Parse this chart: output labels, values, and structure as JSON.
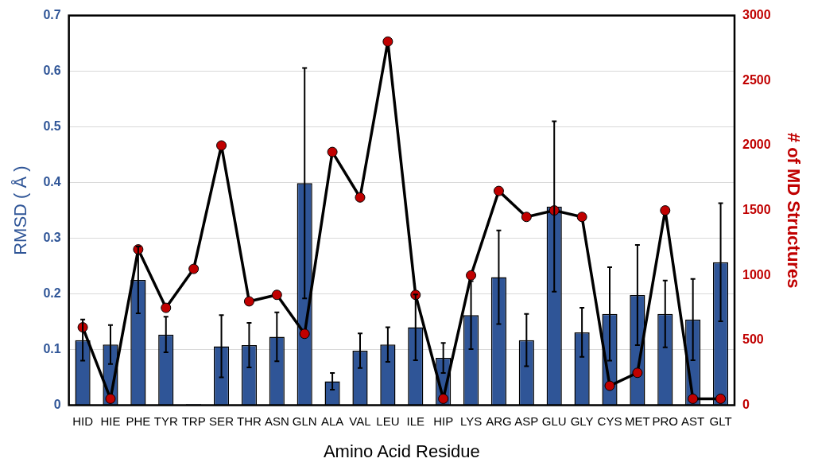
{
  "chart_data": {
    "type": "bar",
    "xlabel": "Amino Acid Residue",
    "ylabel": "RMSD ( Å )",
    "y2label": "# of MD Structures",
    "categories": [
      "HID",
      "HIE",
      "PHE",
      "TYR",
      "TRP",
      "SER",
      "THR",
      "ASN",
      "GLN",
      "ALA",
      "VAL",
      "LEU",
      "ILE",
      "HIP",
      "LYS",
      "ARG",
      "ASP",
      "GLU",
      "GLY",
      "CYS",
      "MET",
      "PRO",
      "AST",
      "GLT"
    ],
    "series": [
      {
        "color": "#2f5597",
        "values": [
          0.117,
          0.109,
          0.225,
          0.127,
          0.002,
          0.106,
          0.108,
          0.123,
          0.399,
          0.043,
          0.098,
          0.109,
          0.14,
          0.085,
          0.162,
          0.23,
          0.117,
          0.357,
          0.131,
          0.164,
          0.198,
          0.164,
          0.154,
          0.257
        ],
        "errors": [
          0.037,
          0.035,
          0.06,
          0.032,
          null,
          0.056,
          0.04,
          0.044,
          0.207,
          0.015,
          0.031,
          0.031,
          0.059,
          0.027,
          0.061,
          0.084,
          0.047,
          0.153,
          0.044,
          0.084,
          0.09,
          0.06,
          0.073,
          0.106
        ]
      },
      {
        "type": "line",
        "axis": "y2",
        "color": "#c00000",
        "values": [
          600,
          50,
          1200,
          750,
          1050,
          2000,
          800,
          850,
          550,
          1950,
          1600,
          2800,
          850,
          50,
          1000,
          1650,
          1450,
          1500,
          1450,
          150,
          250,
          1500,
          50,
          50
        ]
      }
    ],
    "ylim": [
      0,
      0.7
    ],
    "yticks": [
      {
        "value": 0,
        "label": "0"
      },
      0.1,
      0.2,
      0.3,
      0.4,
      0.5,
      0.6,
      0.7
    ],
    "y2lim": [
      0,
      3000
    ],
    "y2ticks": [
      0,
      500,
      1000,
      1500,
      2000,
      2500,
      3000
    ],
    "grid": "y",
    "legend": false,
    "marker": "circle",
    "line_style": "solid"
  }
}
